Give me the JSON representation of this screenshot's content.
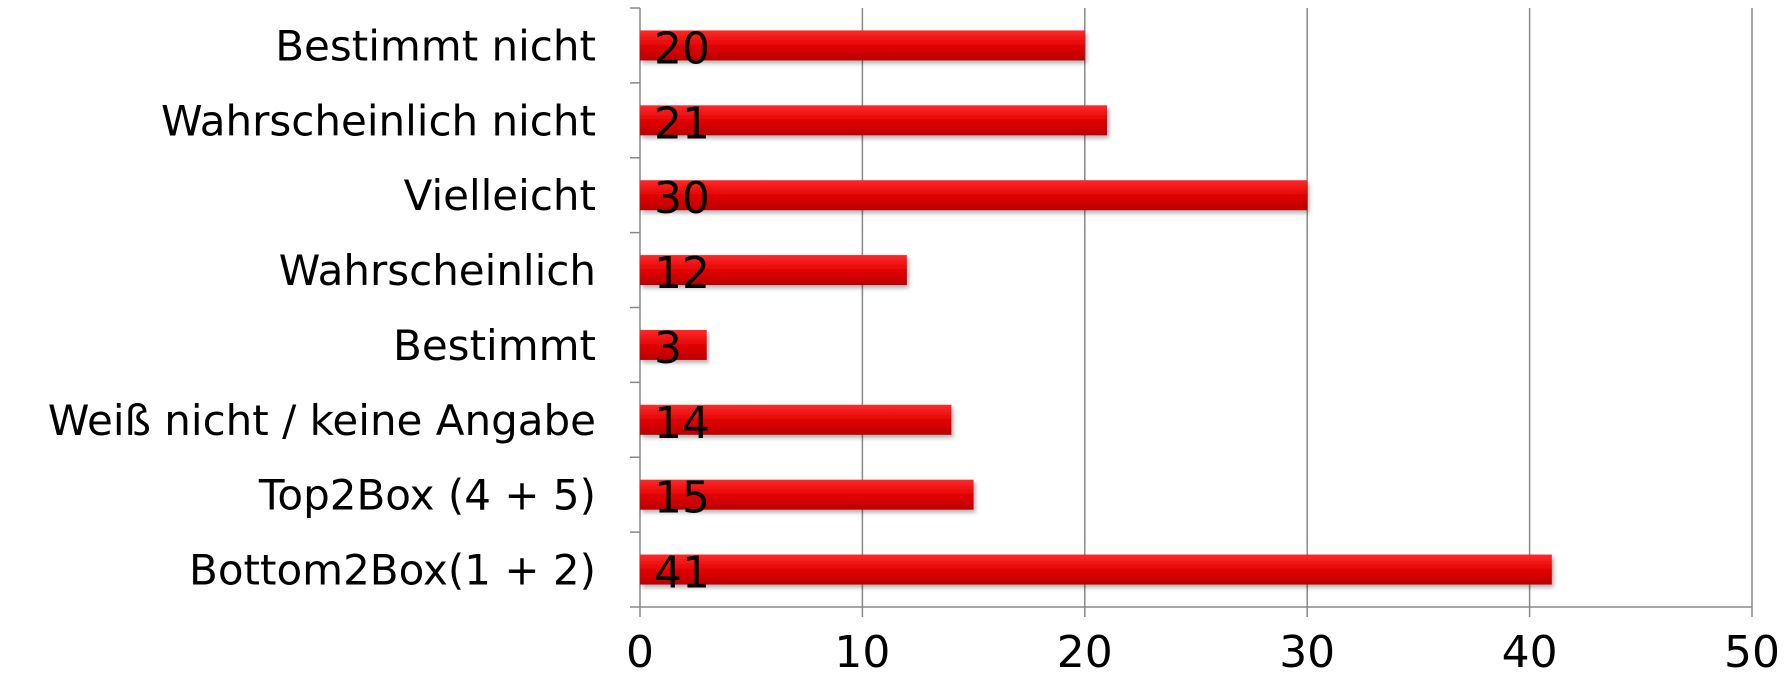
{
  "chart_data": {
    "type": "bar",
    "orientation": "horizontal",
    "categories": [
      "Bestimmt nicht",
      "Wahrscheinlich nicht",
      "Vielleicht",
      "Wahrscheinlich",
      "Bestimmt",
      "Weiß nicht / keine Angabe",
      "Top2Box (4 + 5)",
      "Bottom2Box(1 + 2)"
    ],
    "values": [
      20,
      21,
      30,
      12,
      3,
      14,
      15,
      41
    ],
    "xlim": [
      0,
      50
    ],
    "xticks": [
      0,
      10,
      20,
      30,
      40,
      50
    ],
    "title": "",
    "xlabel": "",
    "ylabel": "",
    "grid": "vertical",
    "legend": "none",
    "bar_color": "#e00000",
    "bar_color_light": "#ff2a2a",
    "bar_color_dark": "#b80000",
    "gridline_color": "#888888",
    "data_labels": true
  }
}
